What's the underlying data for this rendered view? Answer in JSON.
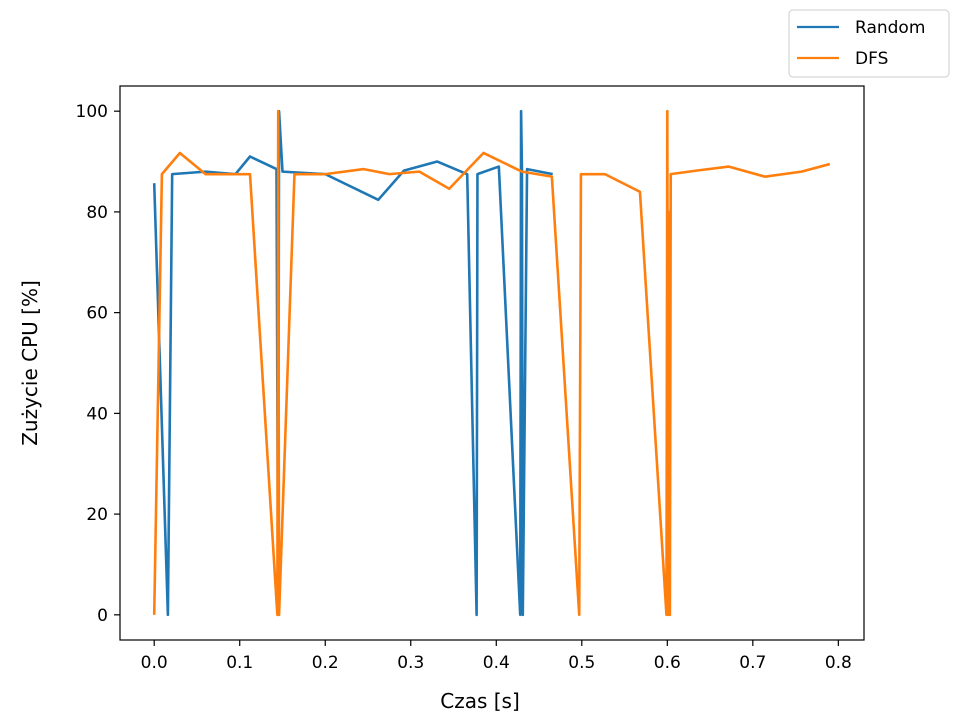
{
  "chart_data": {
    "type": "line",
    "title": "",
    "xlabel": "Czas [s]",
    "ylabel": "Zużycie CPU [%]",
    "xlim": [
      -0.04,
      0.83
    ],
    "ylim": [
      -5,
      105
    ],
    "xticks": [
      0.0,
      0.1,
      0.2,
      0.3,
      0.4,
      0.5,
      0.6,
      0.7,
      0.8
    ],
    "xtick_labels": [
      "0.0",
      "0.1",
      "0.2",
      "0.3",
      "0.4",
      "0.5",
      "0.6",
      "0.7",
      "0.8"
    ],
    "yticks": [
      0,
      20,
      40,
      60,
      80,
      100
    ],
    "ytick_labels": [
      "0",
      "20",
      "40",
      "60",
      "80",
      "100"
    ],
    "grid": false,
    "legend_position": "top-right",
    "series": [
      {
        "name": "Random",
        "color": "#1f77b4",
        "points": [
          [
            0.0,
            85.7
          ],
          [
            0.016,
            0
          ],
          [
            0.021,
            87.5
          ],
          [
            0.06,
            88.0
          ],
          [
            0.095,
            87.5
          ],
          [
            0.112,
            91.0
          ],
          [
            0.143,
            88.5
          ],
          [
            0.145,
            0
          ],
          [
            0.146,
            100
          ],
          [
            0.15,
            88.0
          ],
          [
            0.2,
            87.5
          ],
          [
            0.262,
            82.4
          ],
          [
            0.292,
            88.2
          ],
          [
            0.331,
            90.0
          ],
          [
            0.366,
            87.5
          ],
          [
            0.377,
            0
          ],
          [
            0.378,
            87.5
          ],
          [
            0.403,
            89.0
          ],
          [
            0.428,
            0
          ],
          [
            0.429,
            100
          ],
          [
            0.43,
            88.5
          ],
          [
            0.431,
            0
          ],
          [
            0.436,
            88.5
          ],
          [
            0.466,
            87.5
          ]
        ]
      },
      {
        "name": "DFS",
        "color": "#ff7f0e",
        "points": [
          [
            0.0,
            0
          ],
          [
            0.009,
            87.5
          ],
          [
            0.03,
            91.7
          ],
          [
            0.06,
            87.5
          ],
          [
            0.112,
            87.5
          ],
          [
            0.144,
            0
          ],
          [
            0.145,
            100
          ],
          [
            0.146,
            0
          ],
          [
            0.164,
            87.5
          ],
          [
            0.2,
            87.5
          ],
          [
            0.245,
            88.5
          ],
          [
            0.275,
            87.5
          ],
          [
            0.31,
            88.0
          ],
          [
            0.345,
            84.6
          ],
          [
            0.385,
            91.7
          ],
          [
            0.43,
            88.0
          ],
          [
            0.465,
            87.0
          ],
          [
            0.497,
            0
          ],
          [
            0.499,
            87.5
          ],
          [
            0.527,
            87.5
          ],
          [
            0.568,
            84.0
          ],
          [
            0.599,
            0
          ],
          [
            0.6,
            100
          ],
          [
            0.601,
            0
          ],
          [
            0.602,
            80.0
          ],
          [
            0.603,
            0
          ],
          [
            0.604,
            87.5
          ],
          [
            0.634,
            88.2
          ],
          [
            0.672,
            89.0
          ],
          [
            0.714,
            87.0
          ],
          [
            0.757,
            88.0
          ],
          [
            0.79,
            89.5
          ]
        ]
      }
    ]
  }
}
